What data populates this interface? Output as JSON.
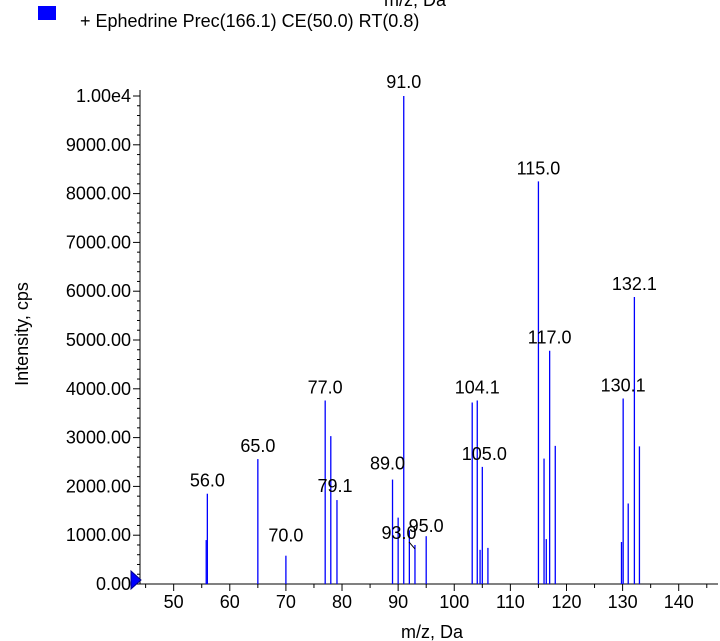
{
  "chart_data": {
    "type": "bar",
    "top_label": "m/z, Da",
    "legend": {
      "label": "+ Ephedrine Prec(166.1) CE(50.0) RT(0.8)",
      "color": "#0000ff"
    },
    "xlabel": "m/z, Da",
    "ylabel": "Intensity, cps",
    "xlim": [
      44,
      147
    ],
    "ylim": [
      0,
      10000
    ],
    "x_ticks": [
      {
        "value": 50,
        "label": "50"
      },
      {
        "value": 60,
        "label": "60"
      },
      {
        "value": 70,
        "label": "70"
      },
      {
        "value": 80,
        "label": "80"
      },
      {
        "value": 90,
        "label": "90"
      },
      {
        "value": 100,
        "label": "100"
      },
      {
        "value": 110,
        "label": "110"
      },
      {
        "value": 120,
        "label": "120"
      },
      {
        "value": 130,
        "label": "130"
      },
      {
        "value": 140,
        "label": "140"
      }
    ],
    "y_ticks": [
      {
        "value": 0,
        "label": "0.00"
      },
      {
        "value": 1000,
        "label": "1000.00"
      },
      {
        "value": 2000,
        "label": "2000.00"
      },
      {
        "value": 3000,
        "label": "3000.00"
      },
      {
        "value": 4000,
        "label": "4000.00"
      },
      {
        "value": 5000,
        "label": "5000.00"
      },
      {
        "value": 6000,
        "label": "6000.00"
      },
      {
        "value": 7000,
        "label": "7000.00"
      },
      {
        "value": 8000,
        "label": "8000.00"
      },
      {
        "value": 9000,
        "label": "9000.00"
      },
      {
        "value": 10000,
        "label": "1.00e4"
      }
    ],
    "peaks": [
      {
        "x": 55.8,
        "y": 900
      },
      {
        "x": 56.0,
        "y": 1850,
        "label": "56.0"
      },
      {
        "x": 65.0,
        "y": 2560,
        "label": "65.0"
      },
      {
        "x": 70.0,
        "y": 580,
        "label": "70.0"
      },
      {
        "x": 77.0,
        "y": 3760,
        "label": "77.0"
      },
      {
        "x": 78.0,
        "y": 3030
      },
      {
        "x": 79.1,
        "y": 1720,
        "label": "79.1"
      },
      {
        "x": 89.0,
        "y": 2140,
        "label": "89.0"
      },
      {
        "x": 90.0,
        "y": 1360
      },
      {
        "x": 91.0,
        "y": 10000,
        "label": "91.0"
      },
      {
        "x": 92.0,
        "y": 1100
      },
      {
        "x": 93.0,
        "y": 800,
        "label": "93.0"
      },
      {
        "x": 95.0,
        "y": 980,
        "label": "95.0"
      },
      {
        "x": 103.2,
        "y": 3720
      },
      {
        "x": 104.1,
        "y": 3760,
        "label": "104.1"
      },
      {
        "x": 104.6,
        "y": 700
      },
      {
        "x": 105.0,
        "y": 2400,
        "label": "105.0"
      },
      {
        "x": 106.0,
        "y": 740
      },
      {
        "x": 115.0,
        "y": 8250,
        "label": "115.0"
      },
      {
        "x": 116.0,
        "y": 2570
      },
      {
        "x": 116.4,
        "y": 920
      },
      {
        "x": 117.0,
        "y": 4780,
        "label": "117.0"
      },
      {
        "x": 118.0,
        "y": 2830
      },
      {
        "x": 129.8,
        "y": 860
      },
      {
        "x": 130.1,
        "y": 3800,
        "label": "130.1"
      },
      {
        "x": 131.0,
        "y": 1650
      },
      {
        "x": 132.1,
        "y": 5880,
        "label": "132.1"
      },
      {
        "x": 133.0,
        "y": 2820
      }
    ]
  }
}
